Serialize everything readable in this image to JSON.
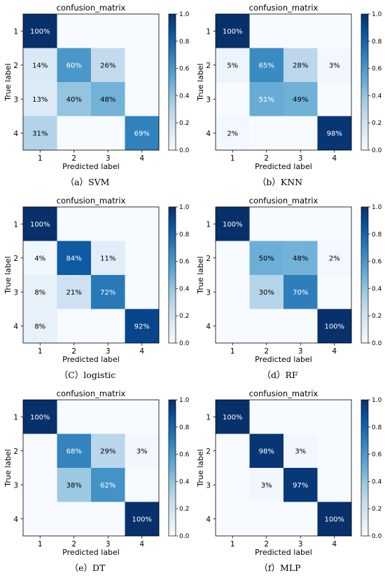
{
  "colormap": {
    "name": "Blues",
    "stops": [
      [
        0.0,
        "#f7fbff"
      ],
      [
        0.125,
        "#deebf7"
      ],
      [
        0.25,
        "#c6dbef"
      ],
      [
        0.375,
        "#9ecae1"
      ],
      [
        0.5,
        "#6baed6"
      ],
      [
        0.625,
        "#4292c6"
      ],
      [
        0.75,
        "#2171b5"
      ],
      [
        0.875,
        "#08519c"
      ],
      [
        1.0,
        "#08306b"
      ]
    ]
  },
  "chart_data": [
    {
      "type": "heatmap",
      "title": "confusion_matrix",
      "caption": "（a）SVM",
      "xlabel": "Predicted label",
      "ylabel": "True label",
      "x_ticks": [
        "1",
        "2",
        "3",
        "4"
      ],
      "y_ticks": [
        "1",
        "2",
        "3",
        "4"
      ],
      "colorbar_ticks": [
        "0.0",
        "0.2",
        "0.4",
        "0.6",
        "0.8",
        "1.0"
      ],
      "clim": [
        0,
        1
      ],
      "values": [
        [
          1.0,
          0,
          0,
          0
        ],
        [
          0.14,
          0.6,
          0.26,
          0
        ],
        [
          0.13,
          0.4,
          0.48,
          0
        ],
        [
          0.31,
          0,
          0,
          0.69
        ]
      ],
      "labels": [
        [
          "100%",
          "",
          "",
          ""
        ],
        [
          "14%",
          "60%",
          "26%",
          ""
        ],
        [
          "13%",
          "40%",
          "48%",
          ""
        ],
        [
          "31%",
          "",
          "",
          "69%"
        ]
      ]
    },
    {
      "type": "heatmap",
      "title": "confusion_matrix",
      "caption": "（b）KNN",
      "xlabel": "Predicted label",
      "ylabel": "True label",
      "x_ticks": [
        "1",
        "2",
        "3",
        "4"
      ],
      "y_ticks": [
        "1",
        "2",
        "3",
        "4"
      ],
      "colorbar_ticks": [
        "0.0",
        "0.2",
        "0.4",
        "0.6",
        "0.8",
        "1.0"
      ],
      "clim": [
        0,
        1
      ],
      "values": [
        [
          1.0,
          0,
          0,
          0
        ],
        [
          0.05,
          0.65,
          0.28,
          0.03
        ],
        [
          0,
          0.51,
          0.49,
          0
        ],
        [
          0.02,
          0,
          0,
          0.98
        ]
      ],
      "labels": [
        [
          "100%",
          "",
          "",
          ""
        ],
        [
          "5%",
          "65%",
          "28%",
          "3%"
        ],
        [
          "",
          "51%",
          "49%",
          ""
        ],
        [
          "2%",
          "",
          "",
          "98%"
        ]
      ]
    },
    {
      "type": "heatmap",
      "title": "confusion_matrix",
      "caption": "（C）logistic",
      "xlabel": "Predicted label",
      "ylabel": "True label",
      "x_ticks": [
        "1",
        "2",
        "3",
        "4"
      ],
      "y_ticks": [
        "1",
        "2",
        "3",
        "4"
      ],
      "colorbar_ticks": [
        "0.0",
        "0.2",
        "0.4",
        "0.6",
        "0.8",
        "1.0"
      ],
      "clim": [
        0,
        1
      ],
      "values": [
        [
          1.0,
          0,
          0,
          0
        ],
        [
          0.04,
          0.84,
          0.11,
          0
        ],
        [
          0.08,
          0.21,
          0.72,
          0
        ],
        [
          0.08,
          0,
          0,
          0.92
        ]
      ],
      "labels": [
        [
          "100%",
          "",
          "",
          ""
        ],
        [
          "4%",
          "84%",
          "11%",
          ""
        ],
        [
          "8%",
          "21%",
          "72%",
          ""
        ],
        [
          "8%",
          "",
          "",
          "92%"
        ]
      ]
    },
    {
      "type": "heatmap",
      "title": "confusion_matrix",
      "caption": "（d）RF",
      "xlabel": "Predicted label",
      "ylabel": "True label",
      "x_ticks": [
        "1",
        "2",
        "3",
        "4"
      ],
      "y_ticks": [
        "1",
        "2",
        "3",
        "4"
      ],
      "colorbar_ticks": [
        "0.0",
        "0.2",
        "0.4",
        "0.6",
        "0.8",
        "1.0"
      ],
      "clim": [
        0,
        1
      ],
      "values": [
        [
          1.0,
          0,
          0,
          0
        ],
        [
          0,
          0.5,
          0.48,
          0.02
        ],
        [
          0,
          0.3,
          0.7,
          0
        ],
        [
          0,
          0,
          0,
          1.0
        ]
      ],
      "labels": [
        [
          "100%",
          "",
          "",
          ""
        ],
        [
          "",
          "50%",
          "48%",
          "2%"
        ],
        [
          "",
          "30%",
          "70%",
          ""
        ],
        [
          "",
          "",
          "",
          "100%"
        ]
      ]
    },
    {
      "type": "heatmap",
      "title": "confusion_matrix",
      "caption": "（e）DT",
      "xlabel": "Predicted label",
      "ylabel": "True label",
      "x_ticks": [
        "1",
        "2",
        "3",
        "4"
      ],
      "y_ticks": [
        "1",
        "2",
        "3",
        "4"
      ],
      "colorbar_ticks": [
        "0.0",
        "0.2",
        "0.4",
        "0.6",
        "0.8",
        "1.0"
      ],
      "clim": [
        0,
        1
      ],
      "values": [
        [
          1.0,
          0,
          0,
          0
        ],
        [
          0,
          0.68,
          0.29,
          0.03
        ],
        [
          0,
          0.38,
          0.62,
          0
        ],
        [
          0,
          0,
          0,
          1.0
        ]
      ],
      "labels": [
        [
          "100%",
          "",
          "",
          ""
        ],
        [
          "",
          "68%",
          "29%",
          "3%"
        ],
        [
          "",
          "38%",
          "62%",
          ""
        ],
        [
          "",
          "",
          "",
          "100%"
        ]
      ]
    },
    {
      "type": "heatmap",
      "title": "confusion_matrix",
      "caption": "（f）MLP",
      "xlabel": "Predicted label",
      "ylabel": "True label",
      "x_ticks": [
        "1",
        "2",
        "3",
        "4"
      ],
      "y_ticks": [
        "1",
        "2",
        "3",
        "4"
      ],
      "colorbar_ticks": [
        "0.0",
        "0.2",
        "0.4",
        "0.6",
        "0.8",
        "1.0"
      ],
      "clim": [
        0,
        1
      ],
      "values": [
        [
          1.0,
          0,
          0,
          0
        ],
        [
          0,
          0.98,
          0.03,
          0
        ],
        [
          0,
          0.03,
          0.97,
          0
        ],
        [
          0,
          0,
          0,
          1.0
        ]
      ],
      "labels": [
        [
          "100%",
          "",
          "",
          ""
        ],
        [
          "",
          "98%",
          "3%",
          ""
        ],
        [
          "",
          "3%",
          "97%",
          ""
        ],
        [
          "",
          "",
          "",
          "100%"
        ]
      ]
    }
  ]
}
